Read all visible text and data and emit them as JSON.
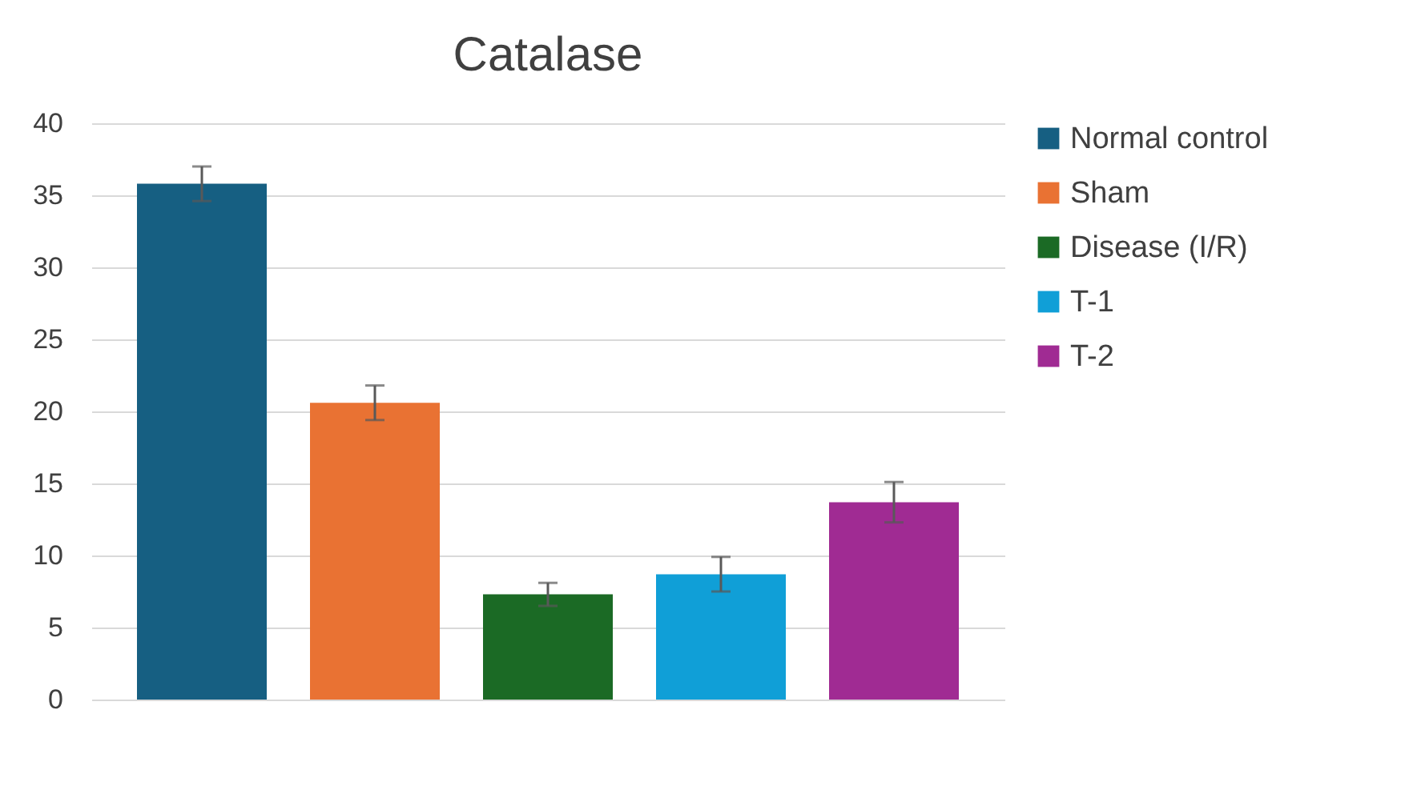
{
  "chart_data": {
    "type": "bar",
    "title": "Catalase",
    "categories": [
      null
    ],
    "series": [
      {
        "name": "Normal control",
        "color": "#165f82",
        "values": [
          35.8
        ],
        "errors": [
          1.2
        ]
      },
      {
        "name": "Sham",
        "color": "#e97233",
        "values": [
          20.6
        ],
        "errors": [
          1.2
        ]
      },
      {
        "name": "Disease (I/R)",
        "color": "#1b6a25",
        "values": [
          7.3
        ],
        "errors": [
          0.8
        ]
      },
      {
        "name": "T-1",
        "color": "#109fd7",
        "values": [
          8.7
        ],
        "errors": [
          1.2
        ]
      },
      {
        "name": "T-2",
        "color": "#a02b93",
        "values": [
          13.7
        ],
        "errors": [
          1.4
        ]
      }
    ],
    "ylim": [
      0,
      40
    ],
    "yticks": [
      0,
      5,
      10,
      15,
      20,
      25,
      30,
      35,
      40
    ],
    "grid": "y",
    "legend": "right"
  }
}
